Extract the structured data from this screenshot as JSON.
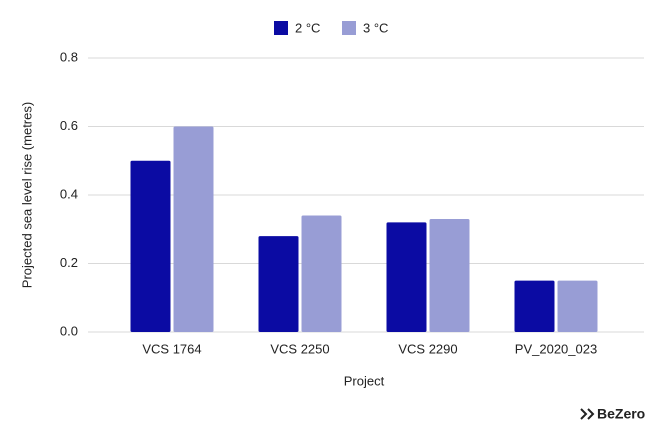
{
  "chart_data": {
    "type": "bar",
    "x_label": "Project",
    "y_label": "Projected sea level rise (metres)",
    "categories": [
      "VCS 1764",
      "VCS 2250",
      "VCS 2290",
      "PV_2020_023"
    ],
    "series": [
      {
        "name": "2 °C",
        "color": "#0b0ba3",
        "values": [
          0.5,
          0.28,
          0.32,
          0.15
        ]
      },
      {
        "name": "3 °C",
        "color": "#989dd5",
        "values": [
          0.6,
          0.34,
          0.33,
          0.15
        ]
      }
    ],
    "ylim": [
      0,
      0.8
    ],
    "yticks": [
      {
        "value": 0,
        "label": "0.0"
      },
      0.2,
      0.4,
      0.6,
      0.8
    ],
    "grid": true,
    "legend": "top",
    "brand": "BeZero"
  }
}
